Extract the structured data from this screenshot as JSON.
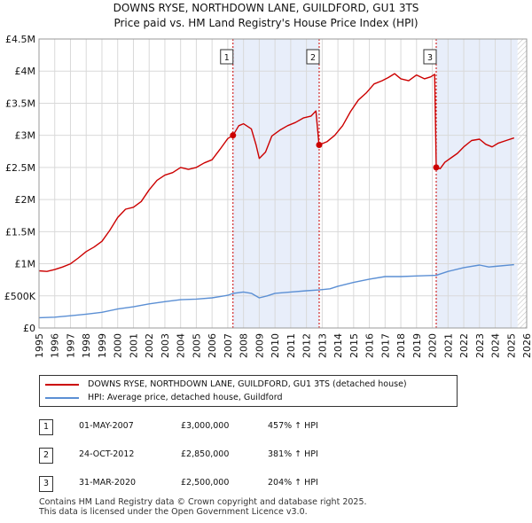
{
  "chart_data": {
    "type": "line",
    "title": "DOWNS RYSE, NORTHDOWN LANE, GUILDFORD, GU1 3TS",
    "subtitle": "Price paid vs. HM Land Registry's House Price Index (HPI)",
    "xlim": [
      1995,
      2026
    ],
    "ylim": [
      0,
      4500000
    ],
    "x_ticks": [
      "1995",
      "1996",
      "1997",
      "1998",
      "1999",
      "2000",
      "2001",
      "2002",
      "2003",
      "2004",
      "2005",
      "2006",
      "2007",
      "2008",
      "2009",
      "2010",
      "2011",
      "2012",
      "2013",
      "2014",
      "2015",
      "2016",
      "2017",
      "2018",
      "2019",
      "2020",
      "2021",
      "2022",
      "2023",
      "2024",
      "2025",
      "2026"
    ],
    "y_ticks": [
      {
        "value": 0,
        "label": "£0"
      },
      {
        "value": 500000,
        "label": "£500K"
      },
      {
        "value": 1000000,
        "label": "£1M"
      },
      {
        "value": 1500000,
        "label": "£1.5M"
      },
      {
        "value": 2000000,
        "label": "£2M"
      },
      {
        "value": 2500000,
        "label": "£2.5M"
      },
      {
        "value": 3000000,
        "label": "£3M"
      },
      {
        "value": 3500000,
        "label": "£3.5M"
      },
      {
        "value": 4000000,
        "label": "£4M"
      },
      {
        "value": 4500000,
        "label": "£4.5M"
      }
    ],
    "series": [
      {
        "name": "DOWNS RYSE, NORTHDOWN LANE, GUILDFORD, GU1 3TS (detached house)",
        "color": "#cc0000",
        "points": [
          [
            1995.0,
            890000
          ],
          [
            1995.5,
            880000
          ],
          [
            1996.0,
            910000
          ],
          [
            1996.5,
            950000
          ],
          [
            1997.0,
            1000000
          ],
          [
            1997.5,
            1090000
          ],
          [
            1998.0,
            1190000
          ],
          [
            1998.5,
            1260000
          ],
          [
            1999.0,
            1350000
          ],
          [
            1999.5,
            1520000
          ],
          [
            2000.0,
            1720000
          ],
          [
            2000.5,
            1850000
          ],
          [
            2001.0,
            1880000
          ],
          [
            2001.5,
            1970000
          ],
          [
            2002.0,
            2150000
          ],
          [
            2002.5,
            2300000
          ],
          [
            2003.0,
            2380000
          ],
          [
            2003.5,
            2420000
          ],
          [
            2004.0,
            2500000
          ],
          [
            2004.5,
            2470000
          ],
          [
            2005.0,
            2500000
          ],
          [
            2005.5,
            2570000
          ],
          [
            2006.0,
            2620000
          ],
          [
            2006.5,
            2780000
          ],
          [
            2007.0,
            2950000
          ],
          [
            2007.33,
            3000000
          ],
          [
            2007.7,
            3150000
          ],
          [
            2008.0,
            3180000
          ],
          [
            2008.5,
            3100000
          ],
          [
            2008.8,
            2850000
          ],
          [
            2009.0,
            2640000
          ],
          [
            2009.4,
            2740000
          ],
          [
            2009.8,
            2990000
          ],
          [
            2010.3,
            3080000
          ],
          [
            2010.8,
            3150000
          ],
          [
            2011.3,
            3200000
          ],
          [
            2011.8,
            3270000
          ],
          [
            2012.3,
            3300000
          ],
          [
            2012.6,
            3380000
          ],
          [
            2012.8,
            2850000
          ],
          [
            2013.3,
            2900000
          ],
          [
            2013.8,
            3000000
          ],
          [
            2014.3,
            3150000
          ],
          [
            2014.8,
            3370000
          ],
          [
            2015.3,
            3550000
          ],
          [
            2015.8,
            3660000
          ],
          [
            2016.3,
            3800000
          ],
          [
            2016.8,
            3850000
          ],
          [
            2017.2,
            3900000
          ],
          [
            2017.6,
            3960000
          ],
          [
            2018.0,
            3880000
          ],
          [
            2018.5,
            3850000
          ],
          [
            2019.0,
            3940000
          ],
          [
            2019.5,
            3880000
          ],
          [
            2019.9,
            3910000
          ],
          [
            2020.15,
            3950000
          ],
          [
            2020.25,
            2500000
          ],
          [
            2020.5,
            2480000
          ],
          [
            2020.8,
            2580000
          ],
          [
            2021.2,
            2650000
          ],
          [
            2021.6,
            2720000
          ],
          [
            2022.0,
            2820000
          ],
          [
            2022.5,
            2920000
          ],
          [
            2023.0,
            2940000
          ],
          [
            2023.4,
            2860000
          ],
          [
            2023.8,
            2820000
          ],
          [
            2024.2,
            2880000
          ],
          [
            2024.7,
            2920000
          ],
          [
            2025.2,
            2960000
          ]
        ]
      },
      {
        "name": "HPI: Average price, detached house, Guildford",
        "color": "#5b8fd4",
        "points": [
          [
            1995.0,
            160000
          ],
          [
            1996.0,
            168000
          ],
          [
            1997.0,
            190000
          ],
          [
            1998.0,
            215000
          ],
          [
            1999.0,
            245000
          ],
          [
            2000.0,
            295000
          ],
          [
            2001.0,
            330000
          ],
          [
            2002.0,
            375000
          ],
          [
            2003.0,
            410000
          ],
          [
            2004.0,
            440000
          ],
          [
            2005.0,
            450000
          ],
          [
            2006.0,
            470000
          ],
          [
            2007.0,
            510000
          ],
          [
            2007.33,
            538000
          ],
          [
            2008.0,
            560000
          ],
          [
            2008.5,
            540000
          ],
          [
            2009.0,
            470000
          ],
          [
            2009.5,
            500000
          ],
          [
            2010.0,
            540000
          ],
          [
            2011.0,
            560000
          ],
          [
            2012.0,
            580000
          ],
          [
            2012.8,
            592000
          ],
          [
            2013.5,
            610000
          ],
          [
            2014.0,
            650000
          ],
          [
            2015.0,
            710000
          ],
          [
            2016.0,
            760000
          ],
          [
            2017.0,
            800000
          ],
          [
            2018.0,
            800000
          ],
          [
            2019.0,
            810000
          ],
          [
            2020.25,
            820000
          ],
          [
            2021.0,
            880000
          ],
          [
            2022.0,
            940000
          ],
          [
            2023.0,
            980000
          ],
          [
            2023.6,
            950000
          ],
          [
            2024.0,
            960000
          ],
          [
            2025.2,
            985000
          ]
        ]
      }
    ],
    "sales": [
      {
        "label": "1",
        "x": 2007.33,
        "y": 3000000
      },
      {
        "label": "2",
        "x": 2012.81,
        "y": 2850000
      },
      {
        "label": "3",
        "x": 2020.25,
        "y": 2500000
      }
    ],
    "shaded_ranges": [
      [
        2007.33,
        2012.81
      ],
      [
        2020.25,
        2025.42
      ]
    ],
    "hatch_from": 2025.42
  },
  "legend": {
    "property": "DOWNS RYSE, NORTHDOWN LANE, GUILDFORD, GU1 3TS (detached house)",
    "hpi": "HPI: Average price, detached house, Guildford"
  },
  "transactions": [
    {
      "num": "1",
      "date": "01-MAY-2007",
      "price": "£3,000,000",
      "hpi": "457% ↑ HPI"
    },
    {
      "num": "2",
      "date": "24-OCT-2012",
      "price": "£2,850,000",
      "hpi": "381% ↑ HPI"
    },
    {
      "num": "3",
      "date": "31-MAR-2020",
      "price": "£2,500,000",
      "hpi": "204% ↑ HPI"
    }
  ],
  "footer": {
    "line1": "Contains HM Land Registry data © Crown copyright and database right 2025.",
    "line2": "This data is licensed under the Open Government Licence v3.0."
  },
  "colors": {
    "property": "#cc0000",
    "hpi": "#5b8fd4",
    "shade": "#e8eefa",
    "grid": "#d9d9d9"
  }
}
